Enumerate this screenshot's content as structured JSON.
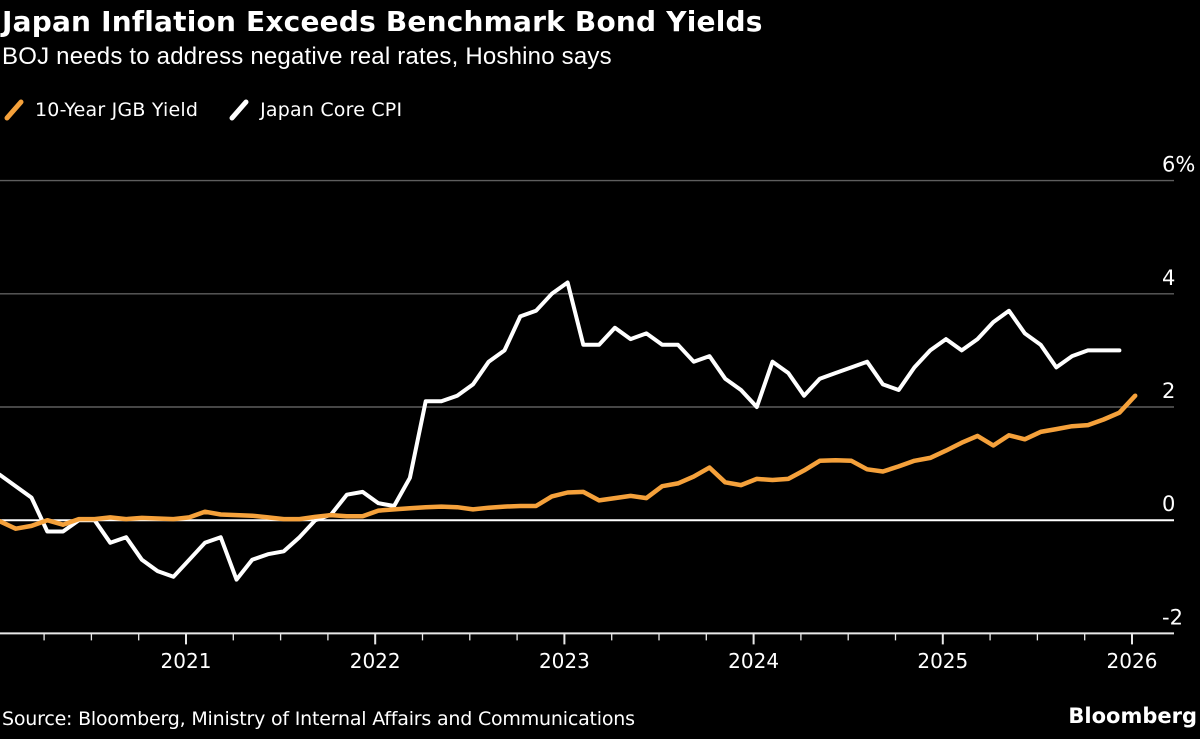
{
  "header": {
    "title": "Japan Inflation Exceeds Benchmark Bond Yields",
    "subtitle": "BOJ needs to address negative real rates, Hoshino says"
  },
  "legend": {
    "items": [
      {
        "label": "10-Year JGB Yield",
        "color": "#F5A13B"
      },
      {
        "label": "Japan Core CPI",
        "color": "#FFFFFF"
      }
    ]
  },
  "footer": {
    "source": "Source: Bloomberg, Ministry of Internal Affairs and Communications",
    "brand": "Bloomberg"
  },
  "chart_data": {
    "type": "line",
    "title": "Japan Inflation Exceeds Benchmark Bond Yields",
    "subtitle": "BOJ needs to address negative real rates, Hoshino says",
    "unit": "percent",
    "x_interval": "monthly",
    "x_start": "2020-01",
    "x_tick_labels": [
      "2021",
      "2022",
      "2023",
      "2024",
      "2025",
      "2026"
    ],
    "y_ticks": [
      6,
      4,
      2,
      0,
      -2
    ],
    "y_tick_labels": [
      "6%",
      "4",
      "2",
      "0",
      "-2"
    ],
    "ylim": [
      -2,
      6.55
    ],
    "grid": "horizontal gridlines, zero line emphasized in white",
    "legend_position": "top-left",
    "background_color": "#000000",
    "colors": {
      "grid": "#5E5E5E",
      "zero_line": "#FFFFFF",
      "axis": "#E8E8E8",
      "text": "#FFFFFF"
    },
    "series": [
      {
        "name": "10-Year JGB Yield",
        "color": "#F5A13B",
        "start": "2020-01",
        "end": "2026-01",
        "values": [
          -0.02,
          -0.15,
          -0.1,
          0.0,
          -0.08,
          0.02,
          0.02,
          0.05,
          0.02,
          0.04,
          0.03,
          0.02,
          0.05,
          0.15,
          0.1,
          0.09,
          0.08,
          0.05,
          0.02,
          0.02,
          0.06,
          0.09,
          0.07,
          0.07,
          0.17,
          0.19,
          0.21,
          0.23,
          0.24,
          0.23,
          0.19,
          0.22,
          0.24,
          0.25,
          0.25,
          0.42,
          0.49,
          0.5,
          0.35,
          0.39,
          0.43,
          0.39,
          0.6,
          0.65,
          0.77,
          0.93,
          0.67,
          0.62,
          0.73,
          0.71,
          0.73,
          0.88,
          1.05,
          1.06,
          1.05,
          0.9,
          0.86,
          0.95,
          1.05,
          1.1,
          1.23,
          1.37,
          1.49,
          1.32,
          1.5,
          1.43,
          1.56,
          1.61,
          1.66,
          1.68,
          1.78,
          1.9,
          2.2
        ]
      },
      {
        "name": "Japan Core CPI",
        "color": "#FFFFFF",
        "start": "2020-01",
        "end": "2025-12",
        "values": [
          0.8,
          0.6,
          0.4,
          -0.2,
          -0.2,
          0.0,
          0.0,
          -0.4,
          -0.3,
          -0.7,
          -0.9,
          -1.0,
          -0.7,
          -0.4,
          -0.3,
          -1.05,
          -0.7,
          -0.6,
          -0.55,
          -0.3,
          0.0,
          0.1,
          0.45,
          0.5,
          0.3,
          0.25,
          0.75,
          2.1,
          2.1,
          2.2,
          2.4,
          2.8,
          3.0,
          3.6,
          3.7,
          4.0,
          4.2,
          3.1,
          3.1,
          3.4,
          3.2,
          3.3,
          3.1,
          3.1,
          2.8,
          2.9,
          2.5,
          2.3,
          2.0,
          2.8,
          2.6,
          2.2,
          2.5,
          2.6,
          2.7,
          2.8,
          2.4,
          2.3,
          2.7,
          3.0,
          3.2,
          3.0,
          3.2,
          3.5,
          3.7,
          3.3,
          3.1,
          2.7,
          2.9,
          3.0,
          3.0,
          3.0
        ]
      }
    ]
  }
}
